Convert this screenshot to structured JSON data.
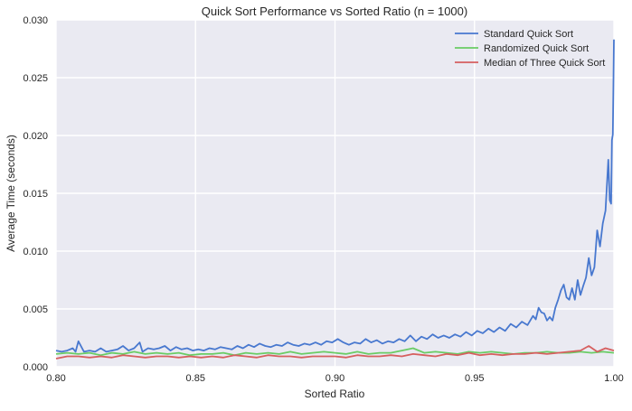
{
  "chart_data": {
    "type": "line",
    "title": "Quick Sort Performance vs Sorted Ratio (n = 1000)",
    "xlabel": "Sorted Ratio",
    "ylabel": "Average Time (seconds)",
    "xlim": [
      0.8,
      1.0
    ],
    "ylim": [
      0.0,
      0.03
    ],
    "x_ticks": [
      "0.80",
      "0.85",
      "0.90",
      "0.95",
      "1.00"
    ],
    "y_ticks": [
      "0.000",
      "0.005",
      "0.010",
      "0.015",
      "0.020",
      "0.025",
      "0.030"
    ],
    "grid": true,
    "legend_position": "top-right",
    "series": [
      {
        "name": "Standard Quick Sort",
        "color": "#4878cf",
        "points": [
          [
            0.8,
            0.0014
          ],
          [
            0.802,
            0.0013
          ],
          [
            0.804,
            0.0014
          ],
          [
            0.806,
            0.0016
          ],
          [
            0.807,
            0.0013
          ],
          [
            0.808,
            0.0022
          ],
          [
            0.81,
            0.0013
          ],
          [
            0.812,
            0.0014
          ],
          [
            0.814,
            0.0013
          ],
          [
            0.816,
            0.0016
          ],
          [
            0.818,
            0.0013
          ],
          [
            0.82,
            0.0014
          ],
          [
            0.822,
            0.0015
          ],
          [
            0.824,
            0.0018
          ],
          [
            0.826,
            0.0014
          ],
          [
            0.828,
            0.0016
          ],
          [
            0.83,
            0.0021
          ],
          [
            0.831,
            0.0013
          ],
          [
            0.833,
            0.0016
          ],
          [
            0.835,
            0.0015
          ],
          [
            0.837,
            0.0016
          ],
          [
            0.839,
            0.0018
          ],
          [
            0.841,
            0.0014
          ],
          [
            0.843,
            0.0017
          ],
          [
            0.845,
            0.0015
          ],
          [
            0.847,
            0.0016
          ],
          [
            0.849,
            0.0014
          ],
          [
            0.851,
            0.0015
          ],
          [
            0.853,
            0.0014
          ],
          [
            0.855,
            0.0016
          ],
          [
            0.857,
            0.0015
          ],
          [
            0.859,
            0.0017
          ],
          [
            0.861,
            0.0016
          ],
          [
            0.863,
            0.0015
          ],
          [
            0.865,
            0.0018
          ],
          [
            0.867,
            0.0016
          ],
          [
            0.869,
            0.0019
          ],
          [
            0.871,
            0.0017
          ],
          [
            0.873,
            0.002
          ],
          [
            0.875,
            0.0018
          ],
          [
            0.877,
            0.0017
          ],
          [
            0.879,
            0.0019
          ],
          [
            0.881,
            0.0018
          ],
          [
            0.883,
            0.0021
          ],
          [
            0.885,
            0.0019
          ],
          [
            0.887,
            0.0018
          ],
          [
            0.889,
            0.002
          ],
          [
            0.891,
            0.0019
          ],
          [
            0.893,
            0.0021
          ],
          [
            0.895,
            0.0019
          ],
          [
            0.897,
            0.0022
          ],
          [
            0.899,
            0.0021
          ],
          [
            0.901,
            0.0024
          ],
          [
            0.903,
            0.0021
          ],
          [
            0.905,
            0.0019
          ],
          [
            0.907,
            0.0021
          ],
          [
            0.909,
            0.002
          ],
          [
            0.911,
            0.0024
          ],
          [
            0.913,
            0.0021
          ],
          [
            0.915,
            0.0023
          ],
          [
            0.917,
            0.002
          ],
          [
            0.919,
            0.0022
          ],
          [
            0.921,
            0.0021
          ],
          [
            0.923,
            0.0024
          ],
          [
            0.925,
            0.0022
          ],
          [
            0.927,
            0.0027
          ],
          [
            0.929,
            0.0022
          ],
          [
            0.931,
            0.0026
          ],
          [
            0.933,
            0.0024
          ],
          [
            0.935,
            0.0028
          ],
          [
            0.937,
            0.0025
          ],
          [
            0.939,
            0.0027
          ],
          [
            0.941,
            0.0025
          ],
          [
            0.943,
            0.0028
          ],
          [
            0.945,
            0.0026
          ],
          [
            0.947,
            0.003
          ],
          [
            0.949,
            0.0027
          ],
          [
            0.951,
            0.0031
          ],
          [
            0.953,
            0.0029
          ],
          [
            0.955,
            0.0033
          ],
          [
            0.957,
            0.003
          ],
          [
            0.959,
            0.0034
          ],
          [
            0.961,
            0.0031
          ],
          [
            0.963,
            0.0037
          ],
          [
            0.965,
            0.0034
          ],
          [
            0.967,
            0.0039
          ],
          [
            0.969,
            0.0036
          ],
          [
            0.971,
            0.0044
          ],
          [
            0.972,
            0.0041
          ],
          [
            0.973,
            0.0051
          ],
          [
            0.974,
            0.0047
          ],
          [
            0.975,
            0.0046
          ],
          [
            0.976,
            0.004
          ],
          [
            0.977,
            0.0043
          ],
          [
            0.978,
            0.004
          ],
          [
            0.979,
            0.0051
          ],
          [
            0.98,
            0.0058
          ],
          [
            0.981,
            0.0066
          ],
          [
            0.982,
            0.0071
          ],
          [
            0.983,
            0.006
          ],
          [
            0.984,
            0.0058
          ],
          [
            0.985,
            0.0068
          ],
          [
            0.986,
            0.0058
          ],
          [
            0.987,
            0.0075
          ],
          [
            0.988,
            0.0062
          ],
          [
            0.989,
            0.007
          ],
          [
            0.99,
            0.0077
          ],
          [
            0.991,
            0.0094
          ],
          [
            0.992,
            0.0079
          ],
          [
            0.993,
            0.0086
          ],
          [
            0.994,
            0.0118
          ],
          [
            0.995,
            0.0104
          ],
          [
            0.996,
            0.0124
          ],
          [
            0.997,
            0.0135
          ],
          [
            0.998,
            0.0179
          ],
          [
            0.9985,
            0.0144
          ],
          [
            0.999,
            0.0141
          ],
          [
            0.9993,
            0.0196
          ],
          [
            0.9996,
            0.0201
          ],
          [
            0.9998,
            0.024
          ],
          [
            1.0,
            0.0283
          ]
        ]
      },
      {
        "name": "Randomized Quick Sort",
        "color": "#6acc65",
        "points": [
          [
            0.8,
            0.0011
          ],
          [
            0.804,
            0.0012
          ],
          [
            0.808,
            0.0011
          ],
          [
            0.812,
            0.0012
          ],
          [
            0.816,
            0.001
          ],
          [
            0.82,
            0.0012
          ],
          [
            0.824,
            0.0011
          ],
          [
            0.828,
            0.0013
          ],
          [
            0.832,
            0.0011
          ],
          [
            0.836,
            0.0012
          ],
          [
            0.84,
            0.0011
          ],
          [
            0.844,
            0.0012
          ],
          [
            0.848,
            0.001
          ],
          [
            0.852,
            0.0011
          ],
          [
            0.856,
            0.0011
          ],
          [
            0.86,
            0.0012
          ],
          [
            0.864,
            0.001
          ],
          [
            0.868,
            0.0012
          ],
          [
            0.872,
            0.0011
          ],
          [
            0.876,
            0.0012
          ],
          [
            0.88,
            0.0011
          ],
          [
            0.884,
            0.0013
          ],
          [
            0.888,
            0.0011
          ],
          [
            0.892,
            0.0012
          ],
          [
            0.896,
            0.0013
          ],
          [
            0.9,
            0.0012
          ],
          [
            0.904,
            0.0011
          ],
          [
            0.908,
            0.0013
          ],
          [
            0.912,
            0.0011
          ],
          [
            0.916,
            0.0012
          ],
          [
            0.92,
            0.0012
          ],
          [
            0.924,
            0.0014
          ],
          [
            0.928,
            0.0016
          ],
          [
            0.932,
            0.0012
          ],
          [
            0.936,
            0.0013
          ],
          [
            0.94,
            0.0012
          ],
          [
            0.944,
            0.0011
          ],
          [
            0.948,
            0.0013
          ],
          [
            0.952,
            0.0012
          ],
          [
            0.956,
            0.0013
          ],
          [
            0.96,
            0.0012
          ],
          [
            0.964,
            0.0011
          ],
          [
            0.968,
            0.0012
          ],
          [
            0.972,
            0.0012
          ],
          [
            0.976,
            0.0013
          ],
          [
            0.98,
            0.0012
          ],
          [
            0.984,
            0.0012
          ],
          [
            0.988,
            0.0013
          ],
          [
            0.992,
            0.0012
          ],
          [
            0.996,
            0.0013
          ],
          [
            1.0,
            0.0012
          ]
        ]
      },
      {
        "name": "Median of Three Quick Sort",
        "color": "#d65f5f",
        "points": [
          [
            0.8,
            0.0007
          ],
          [
            0.804,
            0.0009
          ],
          [
            0.808,
            0.0009
          ],
          [
            0.812,
            0.0008
          ],
          [
            0.816,
            0.0009
          ],
          [
            0.82,
            0.0008
          ],
          [
            0.824,
            0.001
          ],
          [
            0.828,
            0.0009
          ],
          [
            0.832,
            0.0008
          ],
          [
            0.836,
            0.0009
          ],
          [
            0.84,
            0.0009
          ],
          [
            0.844,
            0.0008
          ],
          [
            0.848,
            0.0009
          ],
          [
            0.852,
            0.0008
          ],
          [
            0.856,
            0.0009
          ],
          [
            0.86,
            0.0008
          ],
          [
            0.864,
            0.001
          ],
          [
            0.868,
            0.0009
          ],
          [
            0.872,
            0.0008
          ],
          [
            0.876,
            0.001
          ],
          [
            0.88,
            0.0009
          ],
          [
            0.884,
            0.0009
          ],
          [
            0.888,
            0.0008
          ],
          [
            0.892,
            0.0009
          ],
          [
            0.896,
            0.0009
          ],
          [
            0.9,
            0.0009
          ],
          [
            0.904,
            0.0008
          ],
          [
            0.908,
            0.001
          ],
          [
            0.912,
            0.0009
          ],
          [
            0.916,
            0.0009
          ],
          [
            0.92,
            0.001
          ],
          [
            0.924,
            0.0009
          ],
          [
            0.928,
            0.0011
          ],
          [
            0.932,
            0.001
          ],
          [
            0.936,
            0.0009
          ],
          [
            0.94,
            0.0011
          ],
          [
            0.944,
            0.001
          ],
          [
            0.948,
            0.0012
          ],
          [
            0.952,
            0.001
          ],
          [
            0.956,
            0.0011
          ],
          [
            0.96,
            0.001
          ],
          [
            0.964,
            0.0011
          ],
          [
            0.968,
            0.0011
          ],
          [
            0.972,
            0.0012
          ],
          [
            0.976,
            0.0011
          ],
          [
            0.98,
            0.0012
          ],
          [
            0.984,
            0.0013
          ],
          [
            0.988,
            0.0014
          ],
          [
            0.991,
            0.0018
          ],
          [
            0.994,
            0.0013
          ],
          [
            0.997,
            0.0016
          ],
          [
            1.0,
            0.0014
          ]
        ]
      }
    ]
  }
}
